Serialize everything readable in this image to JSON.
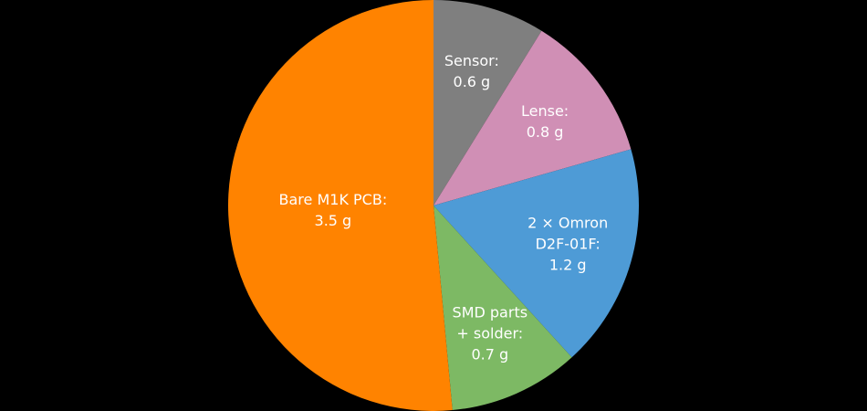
{
  "chart_data": {
    "type": "pie",
    "categories": [
      "Sensor:",
      "Lense:",
      "2 × Omron D2F-01F:",
      "SMD parts + solder:",
      "Bare M1K PCB:"
    ],
    "values": [
      0.6,
      0.8,
      1.2,
      0.7,
      3.5
    ],
    "value_labels": [
      "0.6 g",
      "0.8 g",
      "1.2 g",
      "0.7 g",
      "3.5 g"
    ],
    "colors": [
      "#7f7f7f",
      "#d08fb5",
      "#4e9bd6",
      "#7db964",
      "#ff8300"
    ]
  }
}
